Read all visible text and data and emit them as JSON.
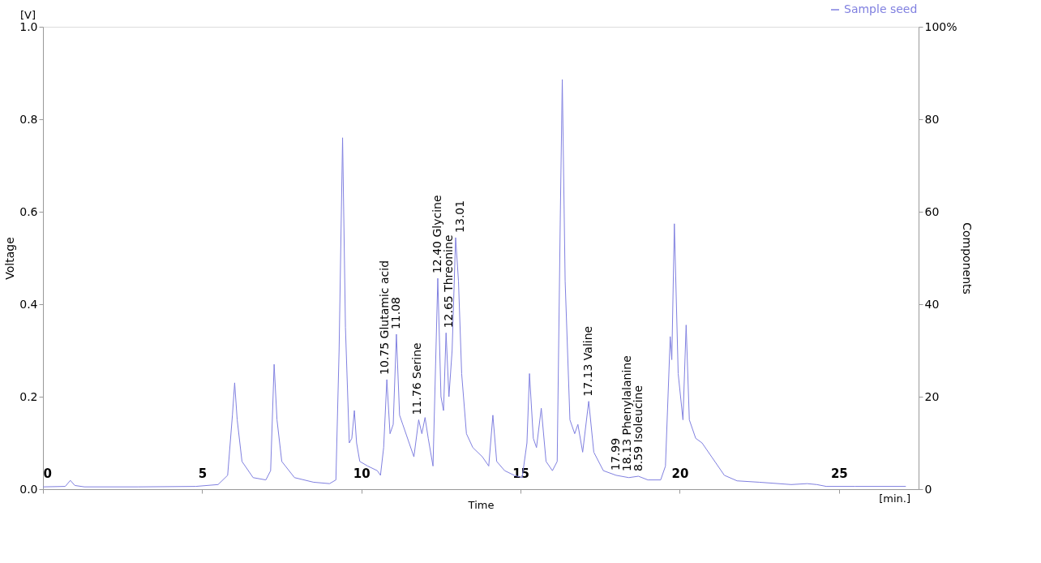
{
  "chart_data": {
    "type": "line",
    "xlabel": "Time",
    "ylabel": "Voltage",
    "y2label": "Components",
    "x": [
      0,
      0.7,
      0.86,
      1.0,
      1.3,
      3,
      4.8,
      5.5,
      5.8,
      5.95,
      6.02,
      6.1,
      6.25,
      6.6,
      7.0,
      7.15,
      7.26,
      7.35,
      7.5,
      7.9,
      8.5,
      9.0,
      9.2,
      9.3,
      9.41,
      9.5,
      9.62,
      9.7,
      9.78,
      9.85,
      9.95,
      10.2,
      10.5,
      10.6,
      10.7,
      10.8,
      10.9,
      11.0,
      11.1,
      11.2,
      11.3,
      11.5,
      11.65,
      11.8,
      11.9,
      12.0,
      12.1,
      12.25,
      12.4,
      12.5,
      12.58,
      12.66,
      12.75,
      12.85,
      12.96,
      13.05,
      13.15,
      13.3,
      13.5,
      13.8,
      14.0,
      14.13,
      14.25,
      14.5,
      14.8,
      15.05,
      15.2,
      15.28,
      15.4,
      15.5,
      15.65,
      15.8,
      16.0,
      16.15,
      16.25,
      16.31,
      16.4,
      16.55,
      16.7,
      16.8,
      16.95,
      17.14,
      17.3,
      17.6,
      18.0,
      18.4,
      18.7,
      19.0,
      19.4,
      19.55,
      19.7,
      19.75,
      19.83,
      19.95,
      20.1,
      20.2,
      20.3,
      20.5,
      20.7,
      21.0,
      21.4,
      21.8,
      22.5,
      23.5,
      24.0,
      24.3,
      24.6,
      25.5,
      27.1
    ],
    "series": [
      {
        "name": "Sample seed",
        "color": "#8080e0",
        "values": [
          0.005,
          0.006,
          0.019,
          0.008,
          0.005,
          0.005,
          0.006,
          0.01,
          0.03,
          0.16,
          0.23,
          0.15,
          0.06,
          0.025,
          0.02,
          0.04,
          0.27,
          0.15,
          0.06,
          0.025,
          0.015,
          0.012,
          0.02,
          0.3,
          0.76,
          0.35,
          0.1,
          0.11,
          0.17,
          0.1,
          0.06,
          0.05,
          0.04,
          0.03,
          0.09,
          0.237,
          0.12,
          0.14,
          0.335,
          0.16,
          0.14,
          0.1,
          0.07,
          0.15,
          0.12,
          0.155,
          0.11,
          0.05,
          0.456,
          0.2,
          0.17,
          0.338,
          0.2,
          0.3,
          0.544,
          0.45,
          0.25,
          0.12,
          0.09,
          0.07,
          0.05,
          0.16,
          0.06,
          0.04,
          0.03,
          0.025,
          0.1,
          0.25,
          0.11,
          0.09,
          0.175,
          0.06,
          0.04,
          0.06,
          0.6,
          0.886,
          0.45,
          0.15,
          0.12,
          0.14,
          0.08,
          0.19,
          0.08,
          0.04,
          0.03,
          0.025,
          0.028,
          0.02,
          0.02,
          0.05,
          0.33,
          0.28,
          0.574,
          0.25,
          0.15,
          0.355,
          0.15,
          0.11,
          0.1,
          0.07,
          0.03,
          0.018,
          0.015,
          0.01,
          0.012,
          0.01,
          0.006,
          0.006,
          0.006
        ]
      }
    ],
    "xlim": [
      0,
      27.5
    ],
    "xticks": [
      0,
      5,
      10,
      15,
      20,
      25
    ],
    "ylim": [
      0,
      1.0
    ],
    "yticks": [
      {
        "value": 0,
        "label": "0.0"
      },
      0.2,
      0.4,
      0.6,
      0.8,
      {
        "value": 1,
        "label": "1.0"
      }
    ],
    "y2lim": [
      0,
      100
    ],
    "y2ticks": [
      0,
      20,
      40,
      60,
      80,
      {
        "value": 100,
        "label": "100%"
      }
    ],
    "legend": "top right",
    "grid": false,
    "marker": "none",
    "line_style": "solid",
    "annotations": [
      "[V]",
      "[min.]",
      {
        "text": "10.75 Glutamic acid",
        "x": 10.75,
        "y": 0.237
      },
      {
        "text": "11.08",
        "x": 11.08,
        "y": 0.335
      },
      {
        "text": "11.76 Serine",
        "x": 11.76,
        "y": 0.15
      },
      {
        "text": "12.40 Glycine",
        "x": 12.4,
        "y": 0.456
      },
      {
        "text": "12.65 Threonine",
        "x": 12.65,
        "y": 0.338
      },
      {
        "text": "13.01",
        "x": 13.01,
        "y": 0.544
      },
      {
        "text": "17.13 Valine",
        "x": 17.13,
        "y": 0.19
      },
      {
        "text": "17.99",
        "x": 17.99,
        "y": 0.03
      },
      {
        "text": "18.13 Phenylalanine",
        "x": 18.13,
        "y": 0.028
      },
      {
        "text": "8.59 Isoleucine",
        "x": 18.59,
        "y": 0.028
      }
    ]
  }
}
